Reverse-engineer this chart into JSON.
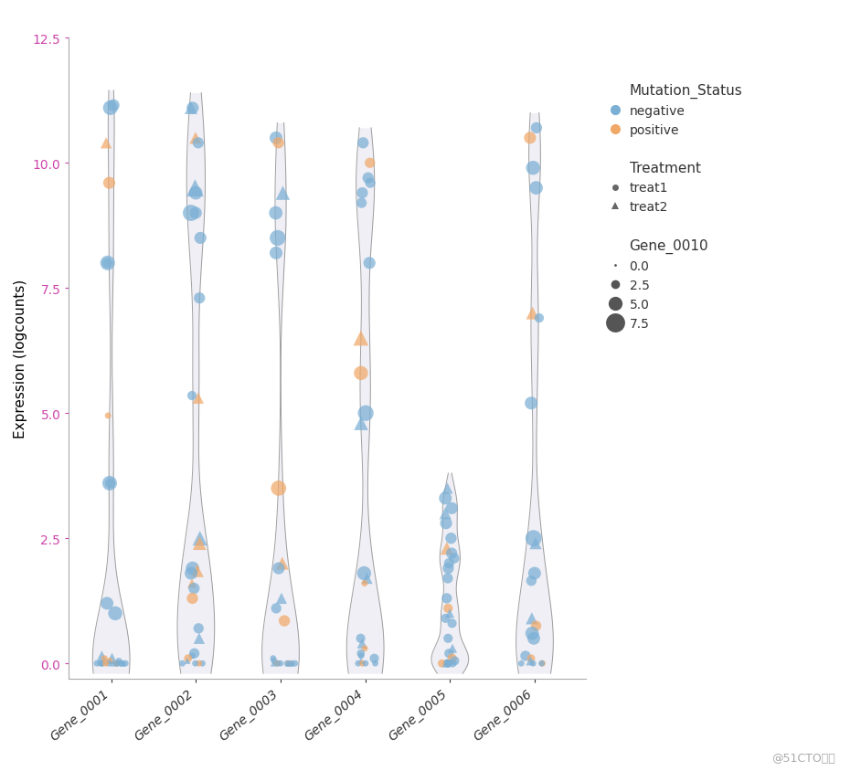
{
  "genes": [
    "Gene_0001",
    "Gene_0002",
    "Gene_0003",
    "Gene_0004",
    "Gene_0005",
    "Gene_0006"
  ],
  "ylabel": "Expression (logcounts)",
  "ylim": [
    -0.3,
    12.5
  ],
  "yticks": [
    0.0,
    2.5,
    5.0,
    7.5,
    10.0,
    12.5
  ],
  "color_negative": "#7bafd4",
  "color_positive": "#f0a868",
  "violin_fill": "#ebebf5",
  "violin_edge": "#888888",
  "background": "#ffffff",
  "tick_color": "#cc44aa",
  "xlabel_color": "#6666cc",
  "legend_title_mutation": "Mutation_Status",
  "legend_title_treatment": "Treatment",
  "legend_title_gene": "Gene_0010",
  "legend_negative": "negative",
  "legend_positive": "positive",
  "legend_treat1": "treat1",
  "legend_treat2": "treat2",
  "gene_0010_sizes": [
    0.0,
    2.5,
    5.0,
    7.5
  ],
  "watermark": "@51CTO博客",
  "points": {
    "Gene_0001": {
      "y": [
        11.1,
        11.15,
        10.4,
        9.6,
        8.0,
        8.0,
        4.95,
        3.6,
        3.6,
        0.1,
        0.05,
        0.0,
        0.0,
        0.0,
        0.0,
        0.0,
        0.0,
        0.0,
        0.0,
        0.0,
        0.0,
        0.0,
        0.0,
        0.0,
        0.0,
        1.0,
        1.2,
        0.15,
        0.1,
        0.05
      ],
      "status": [
        "negative",
        "negative",
        "positive",
        "positive",
        "negative",
        "negative",
        "positive",
        "negative",
        "negative",
        "negative",
        "positive",
        "negative",
        "negative",
        "negative",
        "negative",
        "positive",
        "negative",
        "negative",
        "negative",
        "negative",
        "negative",
        "negative",
        "positive",
        "negative",
        "negative",
        "negative",
        "negative",
        "negative",
        "positive",
        "negative"
      ],
      "treatment": [
        "treat1",
        "treat1",
        "treat2",
        "treat1",
        "treat1",
        "treat1",
        "treat1",
        "treat1",
        "treat1",
        "treat2",
        "treat1",
        "treat1",
        "treat1",
        "treat2",
        "treat1",
        "treat1",
        "treat1",
        "treat2",
        "treat1",
        "treat1",
        "treat1",
        "treat1",
        "treat1",
        "treat1",
        "treat1",
        "treat1",
        "treat1",
        "treat2",
        "treat1",
        "treat1"
      ],
      "size": [
        5.0,
        3.0,
        2.5,
        3.0,
        5.0,
        2.0,
        0.5,
        5.0,
        2.0,
        2.5,
        0.5,
        0.5,
        0.5,
        0.5,
        0.5,
        0.5,
        0.5,
        0.5,
        0.5,
        0.5,
        0.5,
        0.5,
        0.5,
        0.5,
        0.5,
        4.5,
        3.5,
        2.0,
        0.5,
        0.5
      ]
    },
    "Gene_0002": {
      "y": [
        11.1,
        11.1,
        10.5,
        10.4,
        9.5,
        9.4,
        9.0,
        9.0,
        8.5,
        7.3,
        5.3,
        5.35,
        2.5,
        2.4,
        1.9,
        1.85,
        1.8,
        1.6,
        1.5,
        1.3,
        0.7,
        0.5,
        0.2,
        0.15,
        0.1,
        0.05,
        0.0,
        0.0,
        0.0,
        0.0
      ],
      "status": [
        "negative",
        "negative",
        "positive",
        "negative",
        "negative",
        "negative",
        "negative",
        "negative",
        "negative",
        "negative",
        "positive",
        "negative",
        "negative",
        "positive",
        "negative",
        "positive",
        "negative",
        "positive",
        "negative",
        "positive",
        "negative",
        "negative",
        "negative",
        "negative",
        "positive",
        "negative",
        "negative",
        "positive",
        "negative",
        "negative"
      ],
      "treatment": [
        "treat1",
        "treat2",
        "treat2",
        "treat1",
        "treat2",
        "treat1",
        "treat1",
        "treat1",
        "treat1",
        "treat1",
        "treat2",
        "treat1",
        "treat2",
        "treat2",
        "treat1",
        "treat2",
        "treat1",
        "treat2",
        "treat1",
        "treat1",
        "treat1",
        "treat2",
        "treat1",
        "treat1",
        "treat1",
        "treat2",
        "treat1",
        "treat1",
        "treat1",
        "treat1"
      ],
      "size": [
        3.0,
        3.5,
        3.0,
        2.5,
        7.5,
        4.0,
        6.5,
        3.0,
        3.0,
        2.5,
        2.5,
        1.5,
        5.0,
        4.0,
        4.0,
        3.5,
        3.5,
        1.5,
        2.5,
        2.5,
        2.0,
        2.5,
        2.0,
        0.5,
        1.0,
        0.5,
        0.5,
        0.5,
        0.5,
        0.5
      ]
    },
    "Gene_0003": {
      "y": [
        10.5,
        10.4,
        9.4,
        9.0,
        8.5,
        8.2,
        3.5,
        2.0,
        1.9,
        1.3,
        1.1,
        0.85,
        0.1,
        0.05,
        0.0,
        0.0,
        0.0,
        0.0,
        0.0,
        0.0,
        0.0,
        0.0,
        0.0,
        0.0
      ],
      "status": [
        "negative",
        "positive",
        "negative",
        "negative",
        "negative",
        "negative",
        "positive",
        "positive",
        "negative",
        "negative",
        "negative",
        "positive",
        "negative",
        "negative",
        "negative",
        "negative",
        "positive",
        "negative",
        "negative",
        "positive",
        "negative",
        "negative",
        "negative",
        "negative"
      ],
      "treatment": [
        "treat1",
        "treat1",
        "treat2",
        "treat1",
        "treat1",
        "treat1",
        "treat1",
        "treat2",
        "treat1",
        "treat2",
        "treat1",
        "treat1",
        "treat1",
        "treat1",
        "treat1",
        "treat2",
        "treat1",
        "treat1",
        "treat2",
        "treat1",
        "treat1",
        "treat1",
        "treat2",
        "treat1"
      ],
      "size": [
        3.5,
        2.5,
        4.5,
        4.0,
        6.0,
        3.5,
        5.5,
        3.5,
        3.0,
        2.5,
        2.0,
        2.5,
        0.5,
        0.5,
        0.5,
        0.5,
        0.5,
        0.5,
        0.5,
        0.5,
        0.5,
        0.5,
        0.5,
        0.5
      ]
    },
    "Gene_0004": {
      "y": [
        10.4,
        10.0,
        9.7,
        9.6,
        9.4,
        9.2,
        8.0,
        6.5,
        5.8,
        5.0,
        4.8,
        1.8,
        1.7,
        1.6,
        0.5,
        0.4,
        0.3,
        0.2,
        0.15,
        0.1,
        0.05,
        0.0,
        0.0,
        0.0,
        0.0
      ],
      "status": [
        "negative",
        "positive",
        "negative",
        "negative",
        "negative",
        "negative",
        "negative",
        "positive",
        "positive",
        "negative",
        "negative",
        "negative",
        "negative",
        "positive",
        "negative",
        "negative",
        "positive",
        "negative",
        "negative",
        "negative",
        "negative",
        "negative",
        "positive",
        "negative",
        "negative"
      ],
      "treatment": [
        "treat1",
        "treat1",
        "treat1",
        "treat1",
        "treat1",
        "treat1",
        "treat1",
        "treat2",
        "treat1",
        "treat1",
        "treat2",
        "treat1",
        "treat2",
        "treat1",
        "treat1",
        "treat2",
        "treat1",
        "treat1",
        "treat1",
        "treat1",
        "treat2",
        "treat1",
        "treat1",
        "treat1",
        "treat1"
      ],
      "size": [
        2.5,
        2.0,
        2.5,
        2.0,
        2.5,
        2.0,
        3.0,
        5.5,
        4.5,
        6.0,
        4.5,
        4.5,
        2.5,
        0.5,
        1.5,
        2.0,
        0.5,
        1.0,
        0.5,
        1.5,
        0.5,
        0.5,
        0.5,
        0.5,
        0.5
      ]
    },
    "Gene_0005": {
      "y": [
        3.5,
        3.3,
        3.1,
        3.0,
        2.8,
        2.5,
        2.3,
        2.2,
        2.1,
        2.0,
        1.9,
        1.7,
        1.3,
        1.1,
        1.0,
        0.9,
        0.8,
        0.5,
        0.3,
        0.2,
        0.1,
        0.05,
        0.0,
        0.0,
        0.0,
        0.0,
        0.0,
        0.0
      ],
      "status": [
        "negative",
        "negative",
        "negative",
        "negative",
        "negative",
        "negative",
        "positive",
        "negative",
        "negative",
        "negative",
        "negative",
        "negative",
        "negative",
        "positive",
        "negative",
        "negative",
        "negative",
        "negative",
        "negative",
        "negative",
        "positive",
        "negative",
        "negative",
        "negative",
        "positive",
        "negative",
        "negative",
        "negative"
      ],
      "treatment": [
        "treat2",
        "treat1",
        "treat1",
        "treat2",
        "treat1",
        "treat1",
        "treat2",
        "treat1",
        "treat1",
        "treat1",
        "treat1",
        "treat1",
        "treat1",
        "treat1",
        "treat2",
        "treat1",
        "treat1",
        "treat1",
        "treat2",
        "treat1",
        "treat1",
        "treat1",
        "treat1",
        "treat1",
        "treat1",
        "treat1",
        "treat2",
        "treat1"
      ],
      "size": [
        2.5,
        3.5,
        3.0,
        3.0,
        3.0,
        2.5,
        3.5,
        2.5,
        2.0,
        2.0,
        2.5,
        2.0,
        2.0,
        1.5,
        1.5,
        1.5,
        1.5,
        1.5,
        1.5,
        1.5,
        1.5,
        1.5,
        1.0,
        1.0,
        1.0,
        1.0,
        1.0,
        1.0
      ]
    },
    "Gene_0006": {
      "y": [
        10.7,
        10.5,
        9.9,
        9.5,
        7.0,
        6.9,
        5.2,
        2.5,
        2.4,
        1.8,
        1.65,
        0.9,
        0.75,
        0.6,
        0.5,
        0.15,
        0.1,
        0.05,
        0.0,
        0.0,
        0.0,
        0.0
      ],
      "status": [
        "negative",
        "positive",
        "negative",
        "negative",
        "positive",
        "negative",
        "negative",
        "negative",
        "negative",
        "negative",
        "negative",
        "negative",
        "positive",
        "negative",
        "negative",
        "negative",
        "positive",
        "negative",
        "negative",
        "negative",
        "positive",
        "negative"
      ],
      "treatment": [
        "treat1",
        "treat1",
        "treat1",
        "treat1",
        "treat2",
        "treat1",
        "treat1",
        "treat1",
        "treat2",
        "treat1",
        "treat1",
        "treat2",
        "treat1",
        "treat1",
        "treat1",
        "treat1",
        "treat1",
        "treat2",
        "treat1",
        "treat1",
        "treat1",
        "treat1"
      ],
      "size": [
        2.5,
        3.0,
        4.5,
        4.0,
        3.5,
        1.5,
        3.5,
        6.5,
        3.0,
        3.5,
        2.0,
        3.0,
        2.0,
        4.0,
        3.5,
        2.0,
        1.0,
        1.5,
        0.5,
        0.5,
        0.5,
        0.5
      ]
    }
  }
}
